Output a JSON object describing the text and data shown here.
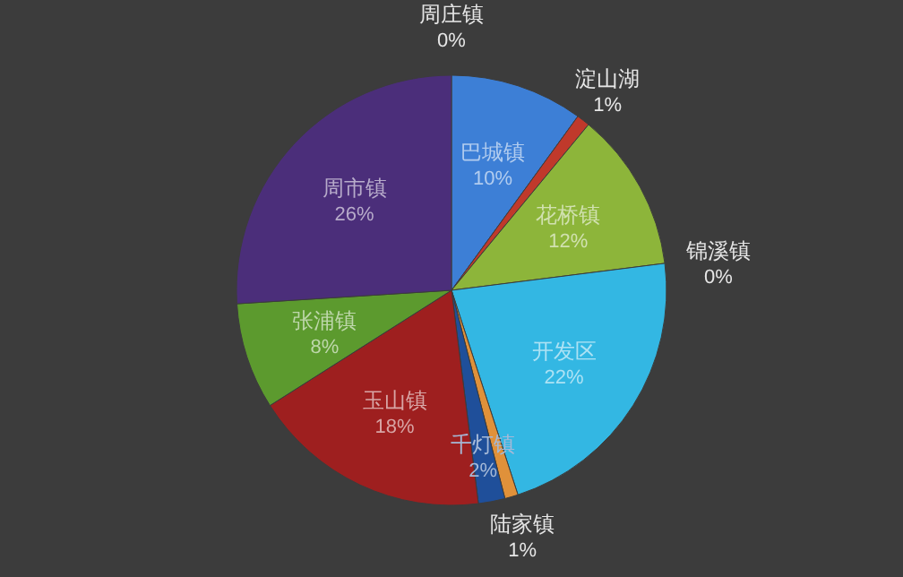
{
  "chart_data": {
    "type": "pie",
    "categories": [
      "周庄镇",
      "巴城镇",
      "淀山湖",
      "花桥镇",
      "锦溪镇",
      "开发区",
      "陆家镇",
      "千灯镇",
      "玉山镇",
      "张浦镇",
      "周市镇"
    ],
    "values": [
      0,
      10,
      1,
      12,
      0,
      22,
      1,
      2,
      18,
      8,
      26
    ],
    "colors": [
      "#6a4a9a",
      "#3d7fd6",
      "#c0392b",
      "#8db53a",
      "#4aa0c8",
      "#33b7e3",
      "#e0913a",
      "#1f4f9a",
      "#9e1f1f",
      "#5c9a2e",
      "#4b2e7a"
    ],
    "value_labels": [
      "0%",
      "10%",
      "1%",
      "12%",
      "0%",
      "22%",
      "1%",
      "2%",
      "18%",
      "8%",
      "26%"
    ]
  }
}
